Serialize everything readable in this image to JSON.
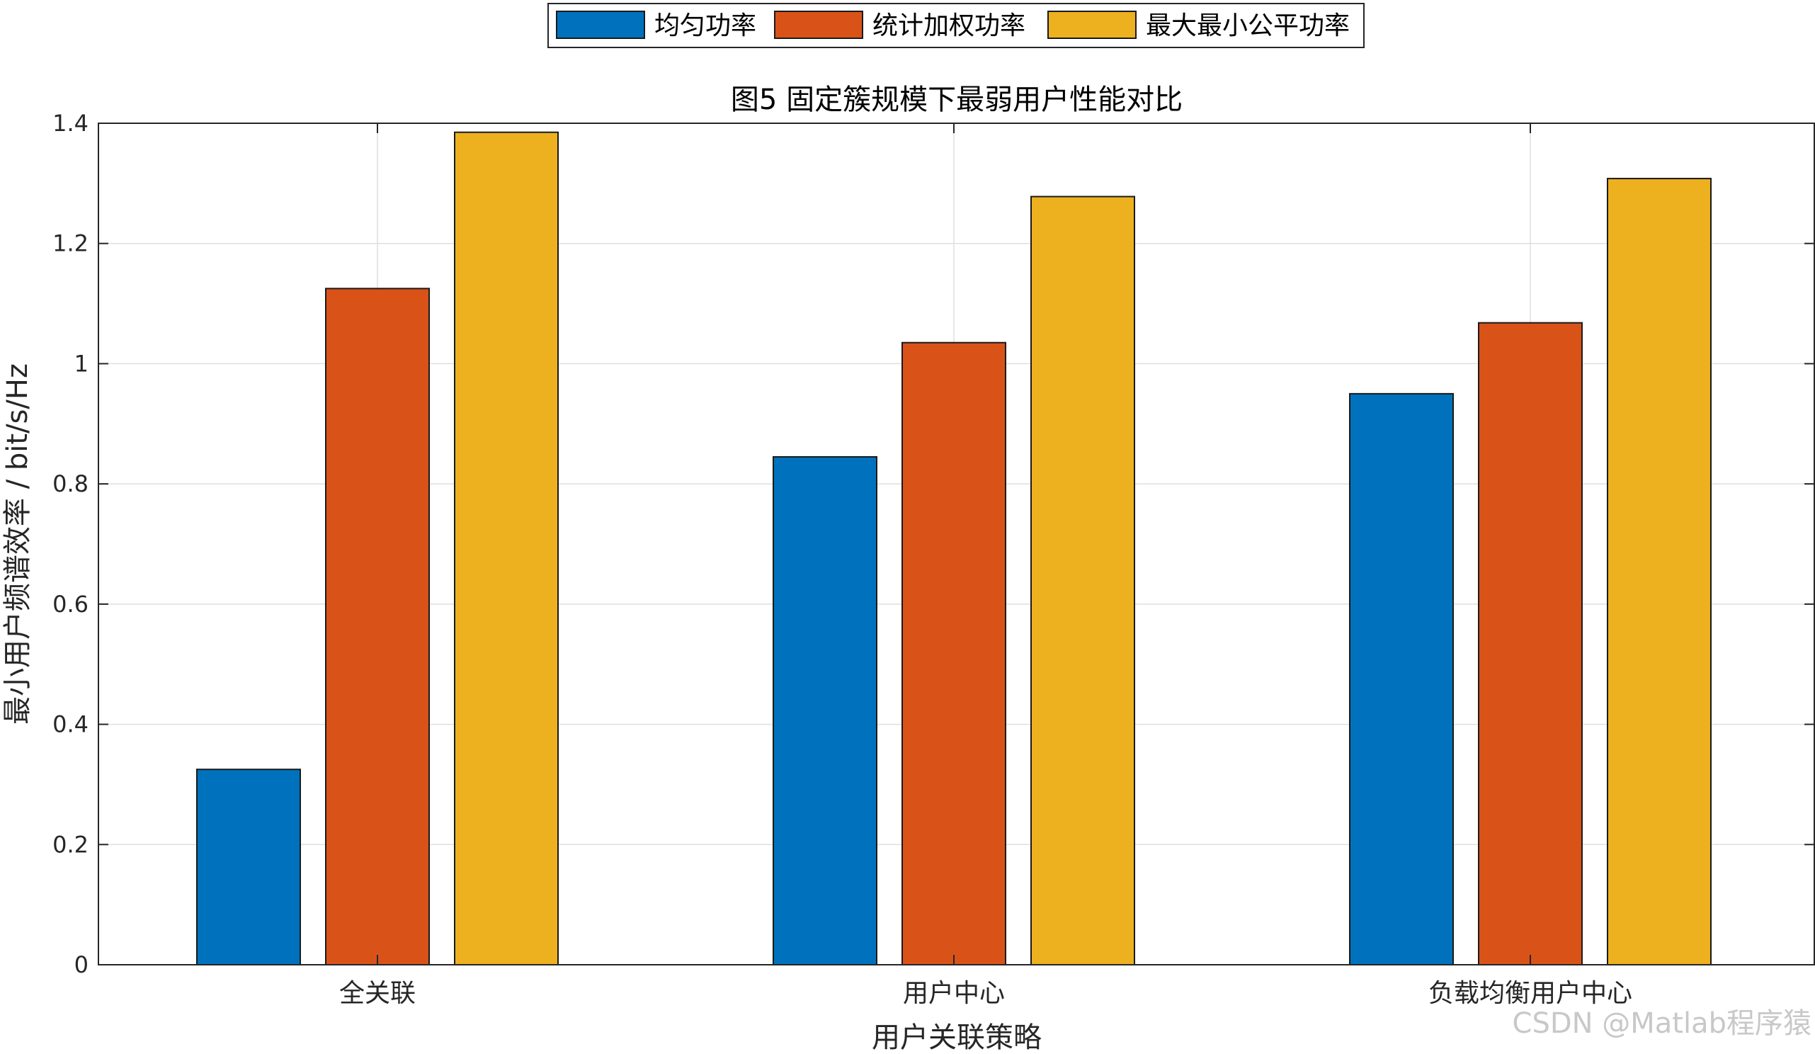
{
  "chart_data": {
    "type": "bar",
    "title": "图5 固定簇规模下最弱用户性能对比",
    "xlabel": "用户关联策略",
    "ylabel": "最小用户频谱效率 / bit/s/Hz",
    "categories": [
      "全关联",
      "用户中心",
      "负载均衡用户中心"
    ],
    "series": [
      {
        "name": "均匀功率",
        "color": "#0072BD",
        "values": [
          0.325,
          0.845,
          0.95
        ]
      },
      {
        "name": "统计加权功率",
        "color": "#D95319",
        "values": [
          1.125,
          1.035,
          1.068
        ]
      },
      {
        "name": "最大最小公平功率",
        "color": "#EDB120",
        "values": [
          1.385,
          1.278,
          1.308
        ]
      }
    ],
    "ylim": [
      0,
      1.4
    ],
    "yticks": [
      0,
      0.2,
      0.4,
      0.6,
      0.8,
      1,
      1.2,
      1.4
    ],
    "ytick_labels": [
      "0",
      "0.2",
      "0.4",
      "0.6",
      "0.8",
      "1",
      "1.2",
      "1.4"
    ],
    "grid": true,
    "legend_position": "top-center, outside, horizontal"
  },
  "watermark": "CSDN @Matlab程序猿"
}
